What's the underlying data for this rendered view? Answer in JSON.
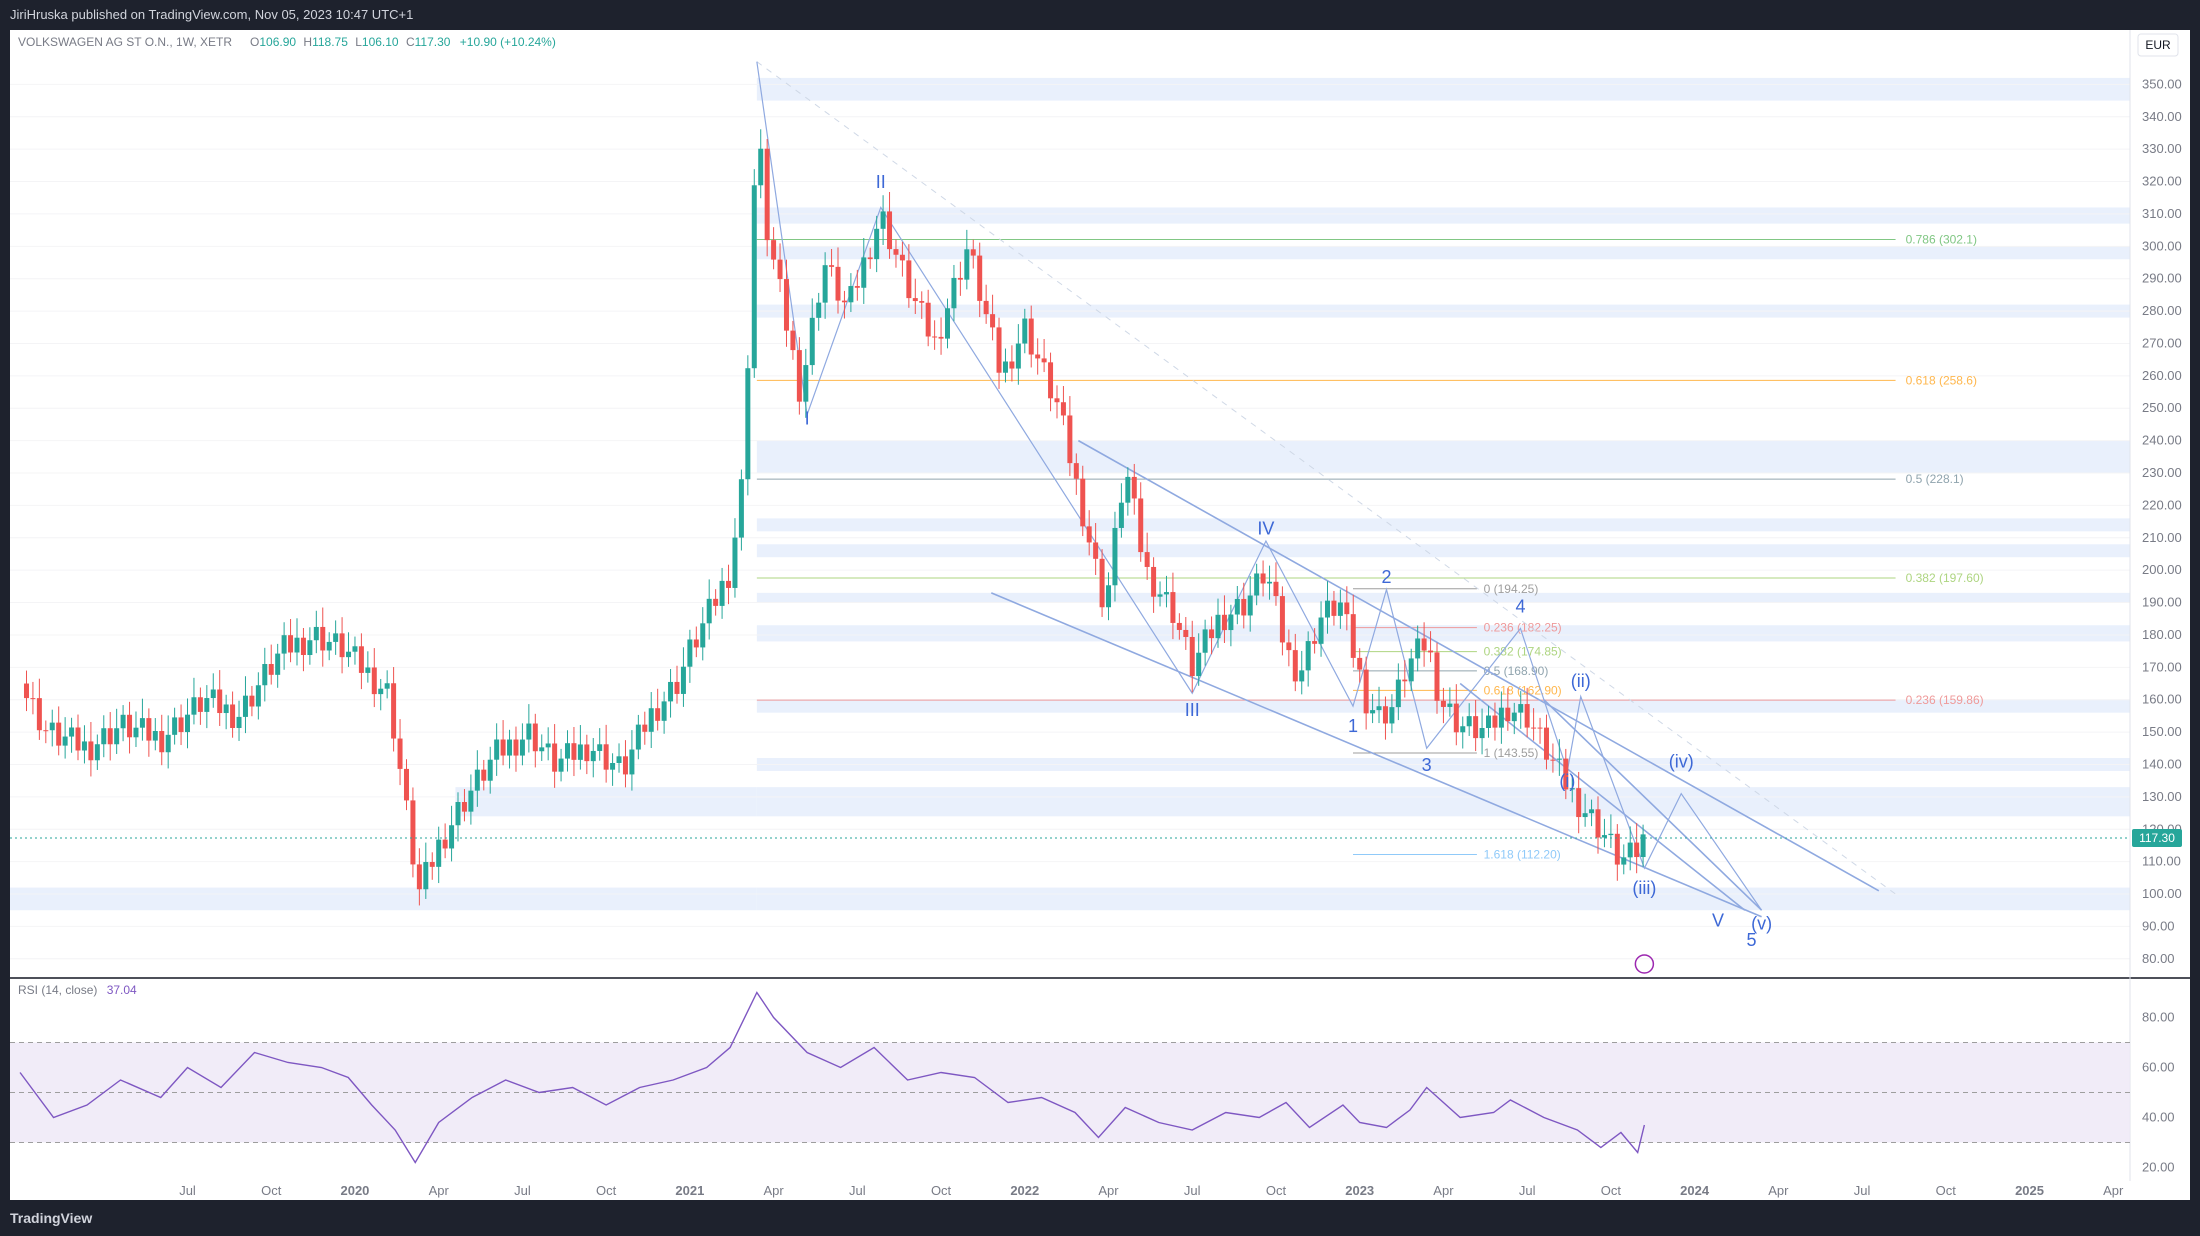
{
  "header": {
    "publisher": "JiriHruska published on TradingView.com, Nov 05, 2023 10:47 UTC+1"
  },
  "footer": {
    "logo": "TradingView"
  },
  "chart_data": {
    "type": "candlestick",
    "symbol_legend": "VOLKSWAGEN AG ST O.N., 1W, XETR",
    "ohlc": {
      "open_label": "O",
      "open": "106.90",
      "high_label": "H",
      "high": "118.75",
      "low_label": "L",
      "low": "106.10",
      "close_label": "C",
      "close": "117.30",
      "change": "+10.90 (+10.24%)"
    },
    "currency": "EUR",
    "last_price": 117.3,
    "last_price_label": "117.30",
    "ylim": [
      75,
      360
    ],
    "y_ticks": [
      "80.00",
      "90.00",
      "100.00",
      "110.00",
      "120.00",
      "130.00",
      "140.00",
      "150.00",
      "160.00",
      "170.00",
      "180.00",
      "190.00",
      "200.00",
      "210.00",
      "220.00",
      "230.00",
      "240.00",
      "250.00",
      "260.00",
      "270.00",
      "280.00",
      "290.00",
      "300.00",
      "310.00",
      "320.00",
      "330.00",
      "340.00",
      "350.00"
    ],
    "x_ticks": [
      {
        "t": 2019.5,
        "label": "Jul"
      },
      {
        "t": 2019.75,
        "label": "Oct"
      },
      {
        "t": 2020.0,
        "label": "2020"
      },
      {
        "t": 2020.25,
        "label": "Apr"
      },
      {
        "t": 2020.5,
        "label": "Jul"
      },
      {
        "t": 2020.75,
        "label": "Oct"
      },
      {
        "t": 2021.0,
        "label": "2021"
      },
      {
        "t": 2021.25,
        "label": "Apr"
      },
      {
        "t": 2021.5,
        "label": "Jul"
      },
      {
        "t": 2021.75,
        "label": "Oct"
      },
      {
        "t": 2022.0,
        "label": "2022"
      },
      {
        "t": 2022.25,
        "label": "Apr"
      },
      {
        "t": 2022.5,
        "label": "Jul"
      },
      {
        "t": 2022.75,
        "label": "Oct"
      },
      {
        "t": 2023.0,
        "label": "2023"
      },
      {
        "t": 2023.25,
        "label": "Apr"
      },
      {
        "t": 2023.5,
        "label": "Jul"
      },
      {
        "t": 2023.75,
        "label": "Oct"
      },
      {
        "t": 2024.0,
        "label": "2024"
      },
      {
        "t": 2024.25,
        "label": "Apr"
      },
      {
        "t": 2024.5,
        "label": "Jul"
      },
      {
        "t": 2024.75,
        "label": "Oct"
      },
      {
        "t": 2025.0,
        "label": "2025"
      },
      {
        "t": 2025.25,
        "label": "Apr"
      }
    ],
    "price_path": [
      [
        2019.0,
        165
      ],
      [
        2019.08,
        150
      ],
      [
        2019.2,
        145
      ],
      [
        2019.3,
        152
      ],
      [
        2019.42,
        148
      ],
      [
        2019.55,
        160
      ],
      [
        2019.65,
        155
      ],
      [
        2019.78,
        175
      ],
      [
        2019.88,
        180
      ],
      [
        2019.96,
        176
      ],
      [
        2020.02,
        170
      ],
      [
        2020.1,
        162
      ],
      [
        2020.14,
        135
      ],
      [
        2020.19,
        100
      ],
      [
        2020.25,
        115
      ],
      [
        2020.32,
        128
      ],
      [
        2020.42,
        143
      ],
      [
        2020.52,
        150
      ],
      [
        2020.6,
        140
      ],
      [
        2020.7,
        146
      ],
      [
        2020.8,
        138
      ],
      [
        2020.88,
        155
      ],
      [
        2020.96,
        165
      ],
      [
        2021.0,
        175
      ],
      [
        2021.05,
        185
      ],
      [
        2021.12,
        200
      ],
      [
        2021.16,
        230
      ],
      [
        2021.2,
        340
      ],
      [
        2021.23,
        305
      ],
      [
        2021.28,
        280
      ],
      [
        2021.33,
        255
      ],
      [
        2021.4,
        295
      ],
      [
        2021.47,
        280
      ],
      [
        2021.57,
        310
      ],
      [
        2021.66,
        285
      ],
      [
        2021.73,
        270
      ],
      [
        2021.83,
        300
      ],
      [
        2021.93,
        260
      ],
      [
        2022.0,
        275
      ],
      [
        2022.1,
        250
      ],
      [
        2022.18,
        215
      ],
      [
        2022.24,
        188
      ],
      [
        2022.3,
        232
      ],
      [
        2022.36,
        200
      ],
      [
        2022.44,
        188
      ],
      [
        2022.5,
        170
      ],
      [
        2022.58,
        185
      ],
      [
        2022.66,
        190
      ],
      [
        2022.72,
        200
      ],
      [
        2022.78,
        175
      ],
      [
        2022.82,
        168
      ],
      [
        2022.88,
        185
      ],
      [
        2022.94,
        190
      ],
      [
        2022.98,
        175
      ],
      [
        2023.02,
        160
      ],
      [
        2023.06,
        155
      ],
      [
        2023.1,
        158
      ],
      [
        2023.14,
        170
      ],
      [
        2023.2,
        178
      ],
      [
        2023.24,
        160
      ],
      [
        2023.3,
        152
      ],
      [
        2023.38,
        150
      ],
      [
        2023.44,
        158
      ],
      [
        2023.5,
        155
      ],
      [
        2023.58,
        140
      ],
      [
        2023.64,
        130
      ],
      [
        2023.72,
        120
      ],
      [
        2023.78,
        110
      ],
      [
        2023.82,
        112
      ],
      [
        2023.85,
        117.3
      ]
    ],
    "rsi": {
      "label": "RSI (14, close)",
      "value": "37.04",
      "ylim": [
        15,
        95
      ],
      "bands": [
        30,
        70
      ],
      "mid": 50,
      "y_ticks": [
        "20.00",
        "40.00",
        "60.00",
        "80.00"
      ],
      "path": [
        [
          2019.0,
          58
        ],
        [
          2019.1,
          40
        ],
        [
          2019.2,
          45
        ],
        [
          2019.3,
          55
        ],
        [
          2019.42,
          48
        ],
        [
          2019.5,
          60
        ],
        [
          2019.6,
          52
        ],
        [
          2019.7,
          66
        ],
        [
          2019.8,
          62
        ],
        [
          2019.9,
          60
        ],
        [
          2019.98,
          56
        ],
        [
          2020.05,
          45
        ],
        [
          2020.12,
          35
        ],
        [
          2020.18,
          22
        ],
        [
          2020.25,
          38
        ],
        [
          2020.35,
          48
        ],
        [
          2020.45,
          55
        ],
        [
          2020.55,
          50
        ],
        [
          2020.65,
          52
        ],
        [
          2020.75,
          45
        ],
        [
          2020.85,
          52
        ],
        [
          2020.95,
          55
        ],
        [
          2021.05,
          60
        ],
        [
          2021.12,
          68
        ],
        [
          2021.2,
          90
        ],
        [
          2021.25,
          80
        ],
        [
          2021.35,
          66
        ],
        [
          2021.45,
          60
        ],
        [
          2021.55,
          68
        ],
        [
          2021.65,
          55
        ],
        [
          2021.75,
          58
        ],
        [
          2021.85,
          56
        ],
        [
          2021.95,
          46
        ],
        [
          2022.05,
          48
        ],
        [
          2022.15,
          42
        ],
        [
          2022.22,
          32
        ],
        [
          2022.3,
          44
        ],
        [
          2022.4,
          38
        ],
        [
          2022.5,
          35
        ],
        [
          2022.6,
          42
        ],
        [
          2022.7,
          40
        ],
        [
          2022.78,
          46
        ],
        [
          2022.85,
          36
        ],
        [
          2022.95,
          45
        ],
        [
          2023.0,
          38
        ],
        [
          2023.08,
          36
        ],
        [
          2023.15,
          43
        ],
        [
          2023.2,
          52
        ],
        [
          2023.3,
          40
        ],
        [
          2023.4,
          42
        ],
        [
          2023.45,
          47
        ],
        [
          2023.55,
          40
        ],
        [
          2023.65,
          35
        ],
        [
          2023.72,
          28
        ],
        [
          2023.78,
          34
        ],
        [
          2023.83,
          26
        ],
        [
          2023.85,
          37
        ]
      ]
    },
    "fib_levels": [
      {
        "label": "0.786 (302.1)",
        "value": 302.1,
        "color": "#81c784"
      },
      {
        "label": "0.618 (258.6)",
        "value": 258.6,
        "color": "#ffb74d"
      },
      {
        "label": "0.5 (228.1)",
        "value": 228.1,
        "color": "#90a4ae"
      },
      {
        "label": "0.382 (197.60)",
        "value": 197.6,
        "color": "#aed581"
      },
      {
        "label": "0.236 (159.86)",
        "value": 159.86,
        "color": "#ef9a9a"
      }
    ],
    "small_fib_levels": [
      {
        "label": "0 (194.25)",
        "value": 194.25,
        "color": "#9e9e9e"
      },
      {
        "label": "0.236 (182.25)",
        "value": 182.25,
        "color": "#ef9a9a"
      },
      {
        "label": "0.382 (174.85)",
        "value": 174.85,
        "color": "#aed581"
      },
      {
        "label": "0.5 (168.90)",
        "value": 168.9,
        "color": "#90a4ae"
      },
      {
        "label": "0.618 (162.90)",
        "value": 162.9,
        "color": "#ffb74d"
      },
      {
        "label": "1 (143.55)",
        "value": 143.55,
        "color": "#9e9e9e"
      },
      {
        "label": "1.618 (112.20)",
        "value": 112.2,
        "color": "#90caf9"
      }
    ],
    "wave_labels": [
      {
        "label": "I",
        "t": 2021.35,
        "v": 245
      },
      {
        "label": "II",
        "t": 2021.57,
        "v": 318
      },
      {
        "label": "III",
        "t": 2022.5,
        "v": 155
      },
      {
        "label": "IV",
        "t": 2022.72,
        "v": 211
      },
      {
        "label": "V",
        "t": 2024.07,
        "v": 90
      },
      {
        "label": "1",
        "t": 2022.98,
        "v": 150
      },
      {
        "label": "2",
        "t": 2023.08,
        "v": 196
      },
      {
        "label": "3",
        "t": 2023.2,
        "v": 138
      },
      {
        "label": "4",
        "t": 2023.48,
        "v": 187
      },
      {
        "label": "5",
        "t": 2024.17,
        "v": 84
      },
      {
        "label": "(i)",
        "t": 2023.62,
        "v": 133
      },
      {
        "label": "(ii)",
        "t": 2023.66,
        "v": 164
      },
      {
        "label": "(iii)",
        "t": 2023.85,
        "v": 100
      },
      {
        "label": "(iv)",
        "t": 2023.96,
        "v": 139
      },
      {
        "label": "(v)",
        "t": 2024.2,
        "v": 89
      }
    ]
  }
}
